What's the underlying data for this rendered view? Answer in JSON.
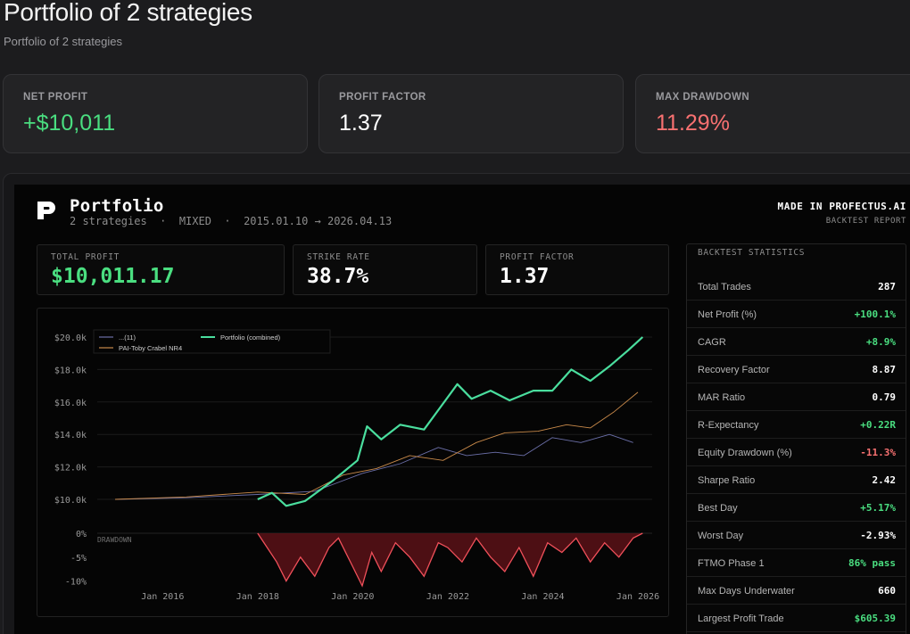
{
  "header": {
    "title": "Portfolio of 2 strategies",
    "subtitle": "Portfolio of 2 strategies"
  },
  "kpis": [
    {
      "label": "NET PROFIT",
      "value": "+$10,011",
      "color": "#4ade80"
    },
    {
      "label": "PROFIT FACTOR",
      "value": "1.37",
      "color": "#ffffff"
    },
    {
      "label": "MAX DRAWDOWN",
      "value": "11.29%",
      "color": "#f87171"
    }
  ],
  "report": {
    "title": "Portfolio",
    "meta": "2 strategies  ·  MIXED  ·  2015.01.10 → 2026.04.13",
    "brand": "MADE IN PROFECTUS.AI",
    "report_type": "BACKTEST REPORT",
    "stats": [
      {
        "label": "TOTAL PROFIT",
        "value": "$10,011.17",
        "color": "#4ade80"
      },
      {
        "label": "STRIKE RATE",
        "value": "38.7%",
        "color": "#ffffff"
      },
      {
        "label": "PROFIT FACTOR",
        "value": "1.37",
        "color": "#ffffff"
      }
    ]
  },
  "backtest_statistics": {
    "heading": "BACKTEST STATISTICS",
    "rows": [
      {
        "label": "Total Trades",
        "value": "287",
        "tone": "neutral"
      },
      {
        "label": "Net Profit (%)",
        "value": "+100.1%",
        "tone": "pos"
      },
      {
        "label": "CAGR",
        "value": "+8.9%",
        "tone": "pos"
      },
      {
        "label": "Recovery Factor",
        "value": "8.87",
        "tone": "neutral"
      },
      {
        "label": "MAR Ratio",
        "value": "0.79",
        "tone": "neutral"
      },
      {
        "label": "R-Expectancy",
        "value": "+0.22R",
        "tone": "pos"
      },
      {
        "label": "Equity Drawdown (%)",
        "value": "-11.3%",
        "tone": "neg"
      },
      {
        "label": "Sharpe Ratio",
        "value": "2.42",
        "tone": "neutral"
      },
      {
        "label": "Best Day",
        "value": "+5.17%",
        "tone": "pos"
      },
      {
        "label": "Worst Day",
        "value": "-2.93%",
        "tone": "neutral"
      },
      {
        "label": "FTMO Phase 1",
        "value": "86% pass",
        "tone": "pos"
      },
      {
        "label": "Max Days Underwater",
        "value": "660",
        "tone": "neutral"
      },
      {
        "label": "Largest Profit Trade",
        "value": "$605.39",
        "tone": "pos"
      }
    ]
  },
  "colors": {
    "positive": "#4ade80",
    "negative": "#f87171",
    "neutral": "#ffffff",
    "portfolio": "#4ade9e",
    "strategy_a": "#6b6fa8",
    "strategy_b": "#c98a4a",
    "drawdown": "#f0505a"
  },
  "chart_data": [
    {
      "type": "line",
      "y_ticks": [
        "$20.0k",
        "$18.0k",
        "$16.0k",
        "$14.0k",
        "$12.0k",
        "$10.0k"
      ],
      "ylim": [
        10000,
        20000
      ],
      "xlim": [
        2015.0,
        2026.3
      ],
      "series": [
        {
          "name": "...(11)",
          "points": [
            [
              2015.0,
              10000
            ],
            [
              2016.5,
              10100
            ],
            [
              2018.0,
              10300
            ],
            [
              2019.2,
              10500
            ],
            [
              2020.2,
              11600
            ],
            [
              2021.0,
              12200
            ],
            [
              2021.8,
              13200
            ],
            [
              2022.4,
              12700
            ],
            [
              2023.0,
              12900
            ],
            [
              2023.6,
              12700
            ],
            [
              2024.2,
              13800
            ],
            [
              2024.8,
              13500
            ],
            [
              2025.4,
              14000
            ],
            [
              2025.9,
              13500
            ]
          ]
        },
        {
          "name": "PAI-Toby Crabel NR4",
          "points": [
            [
              2015.0,
              10000
            ],
            [
              2016.5,
              10150
            ],
            [
              2018.0,
              10450
            ],
            [
              2019.0,
              10300
            ],
            [
              2019.8,
              11500
            ],
            [
              2020.5,
              11900
            ],
            [
              2021.2,
              12700
            ],
            [
              2021.9,
              12400
            ],
            [
              2022.6,
              13500
            ],
            [
              2023.2,
              14100
            ],
            [
              2023.9,
              14200
            ],
            [
              2024.5,
              14600
            ],
            [
              2025.0,
              14400
            ],
            [
              2025.5,
              15400
            ],
            [
              2026.0,
              16600
            ]
          ]
        },
        {
          "name": "Portfolio (combined)",
          "points": [
            [
              2018.0,
              10000
            ],
            [
              2018.3,
              10400
            ],
            [
              2018.6,
              9600
            ],
            [
              2019.0,
              9900
            ],
            [
              2019.6,
              11200
            ],
            [
              2020.1,
              12400
            ],
            [
              2020.3,
              14500
            ],
            [
              2020.6,
              13700
            ],
            [
              2021.0,
              14600
            ],
            [
              2021.5,
              14300
            ],
            [
              2021.8,
              15500
            ],
            [
              2022.2,
              17100
            ],
            [
              2022.5,
              16200
            ],
            [
              2022.9,
              16700
            ],
            [
              2023.3,
              16100
            ],
            [
              2023.8,
              16700
            ],
            [
              2024.2,
              16700
            ],
            [
              2024.6,
              18000
            ],
            [
              2025.0,
              17300
            ],
            [
              2025.4,
              18200
            ],
            [
              2025.8,
              19200
            ],
            [
              2026.1,
              20000
            ]
          ]
        }
      ]
    },
    {
      "type": "area",
      "label": "DRAWDOWN",
      "y_ticks": [
        "0%",
        "-5%",
        "-10%"
      ],
      "ylim": [
        -11,
        0
      ],
      "x_ticks": [
        "Jan 2016",
        "Jan 2018",
        "Jan 2020",
        "Jan 2022",
        "Jan 2024",
        "Jan 2026"
      ],
      "x_tick_values": [
        2016,
        2018,
        2020,
        2022,
        2024,
        2026
      ],
      "points": [
        [
          2018.0,
          0
        ],
        [
          2018.2,
          -3
        ],
        [
          2018.4,
          -6
        ],
        [
          2018.6,
          -10
        ],
        [
          2018.9,
          -5
        ],
        [
          2019.2,
          -9
        ],
        [
          2019.5,
          -3
        ],
        [
          2019.7,
          -1
        ],
        [
          2020.0,
          -7
        ],
        [
          2020.2,
          -11
        ],
        [
          2020.4,
          -4
        ],
        [
          2020.6,
          -8
        ],
        [
          2020.9,
          -2
        ],
        [
          2021.2,
          -5
        ],
        [
          2021.5,
          -9
        ],
        [
          2021.8,
          -2
        ],
        [
          2022.0,
          -3
        ],
        [
          2022.3,
          -6
        ],
        [
          2022.6,
          -1
        ],
        [
          2022.9,
          -5
        ],
        [
          2023.2,
          -8
        ],
        [
          2023.5,
          -3
        ],
        [
          2023.8,
          -9
        ],
        [
          2024.1,
          -2
        ],
        [
          2024.4,
          -4
        ],
        [
          2024.7,
          -1
        ],
        [
          2025.0,
          -6
        ],
        [
          2025.3,
          -2
        ],
        [
          2025.6,
          -5
        ],
        [
          2025.9,
          -1
        ],
        [
          2026.1,
          0
        ]
      ]
    }
  ]
}
